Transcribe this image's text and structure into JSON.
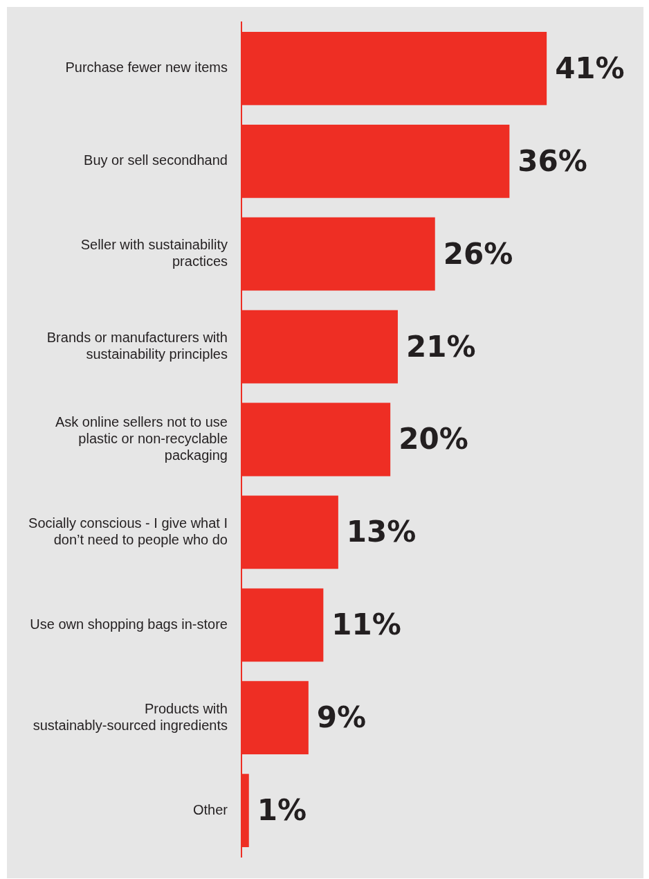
{
  "chart_data": {
    "type": "bar",
    "orientation": "horizontal",
    "categories": [
      "Purchase fewer new items",
      "Buy or sell secondhand",
      "Seller with sustainability practices",
      "Brands or manufacturers with sustainability principles",
      "Ask online sellers not to use plastic or non-recyclable packaging",
      "Socially conscious - I give what I don’t need to people who do",
      "Use own shopping bags in-store",
      "Products with sustainably-sourced ingredients",
      "Other"
    ],
    "values": [
      41,
      36,
      26,
      21,
      20,
      13,
      11,
      9,
      1
    ],
    "value_labels": [
      "41%",
      "36%",
      "26%",
      "21%",
      "20%",
      "13%",
      "11%",
      "9%",
      "1%"
    ],
    "color": "#ee2e24",
    "xlim": [
      0,
      54
    ],
    "tick_labels": "y"
  }
}
